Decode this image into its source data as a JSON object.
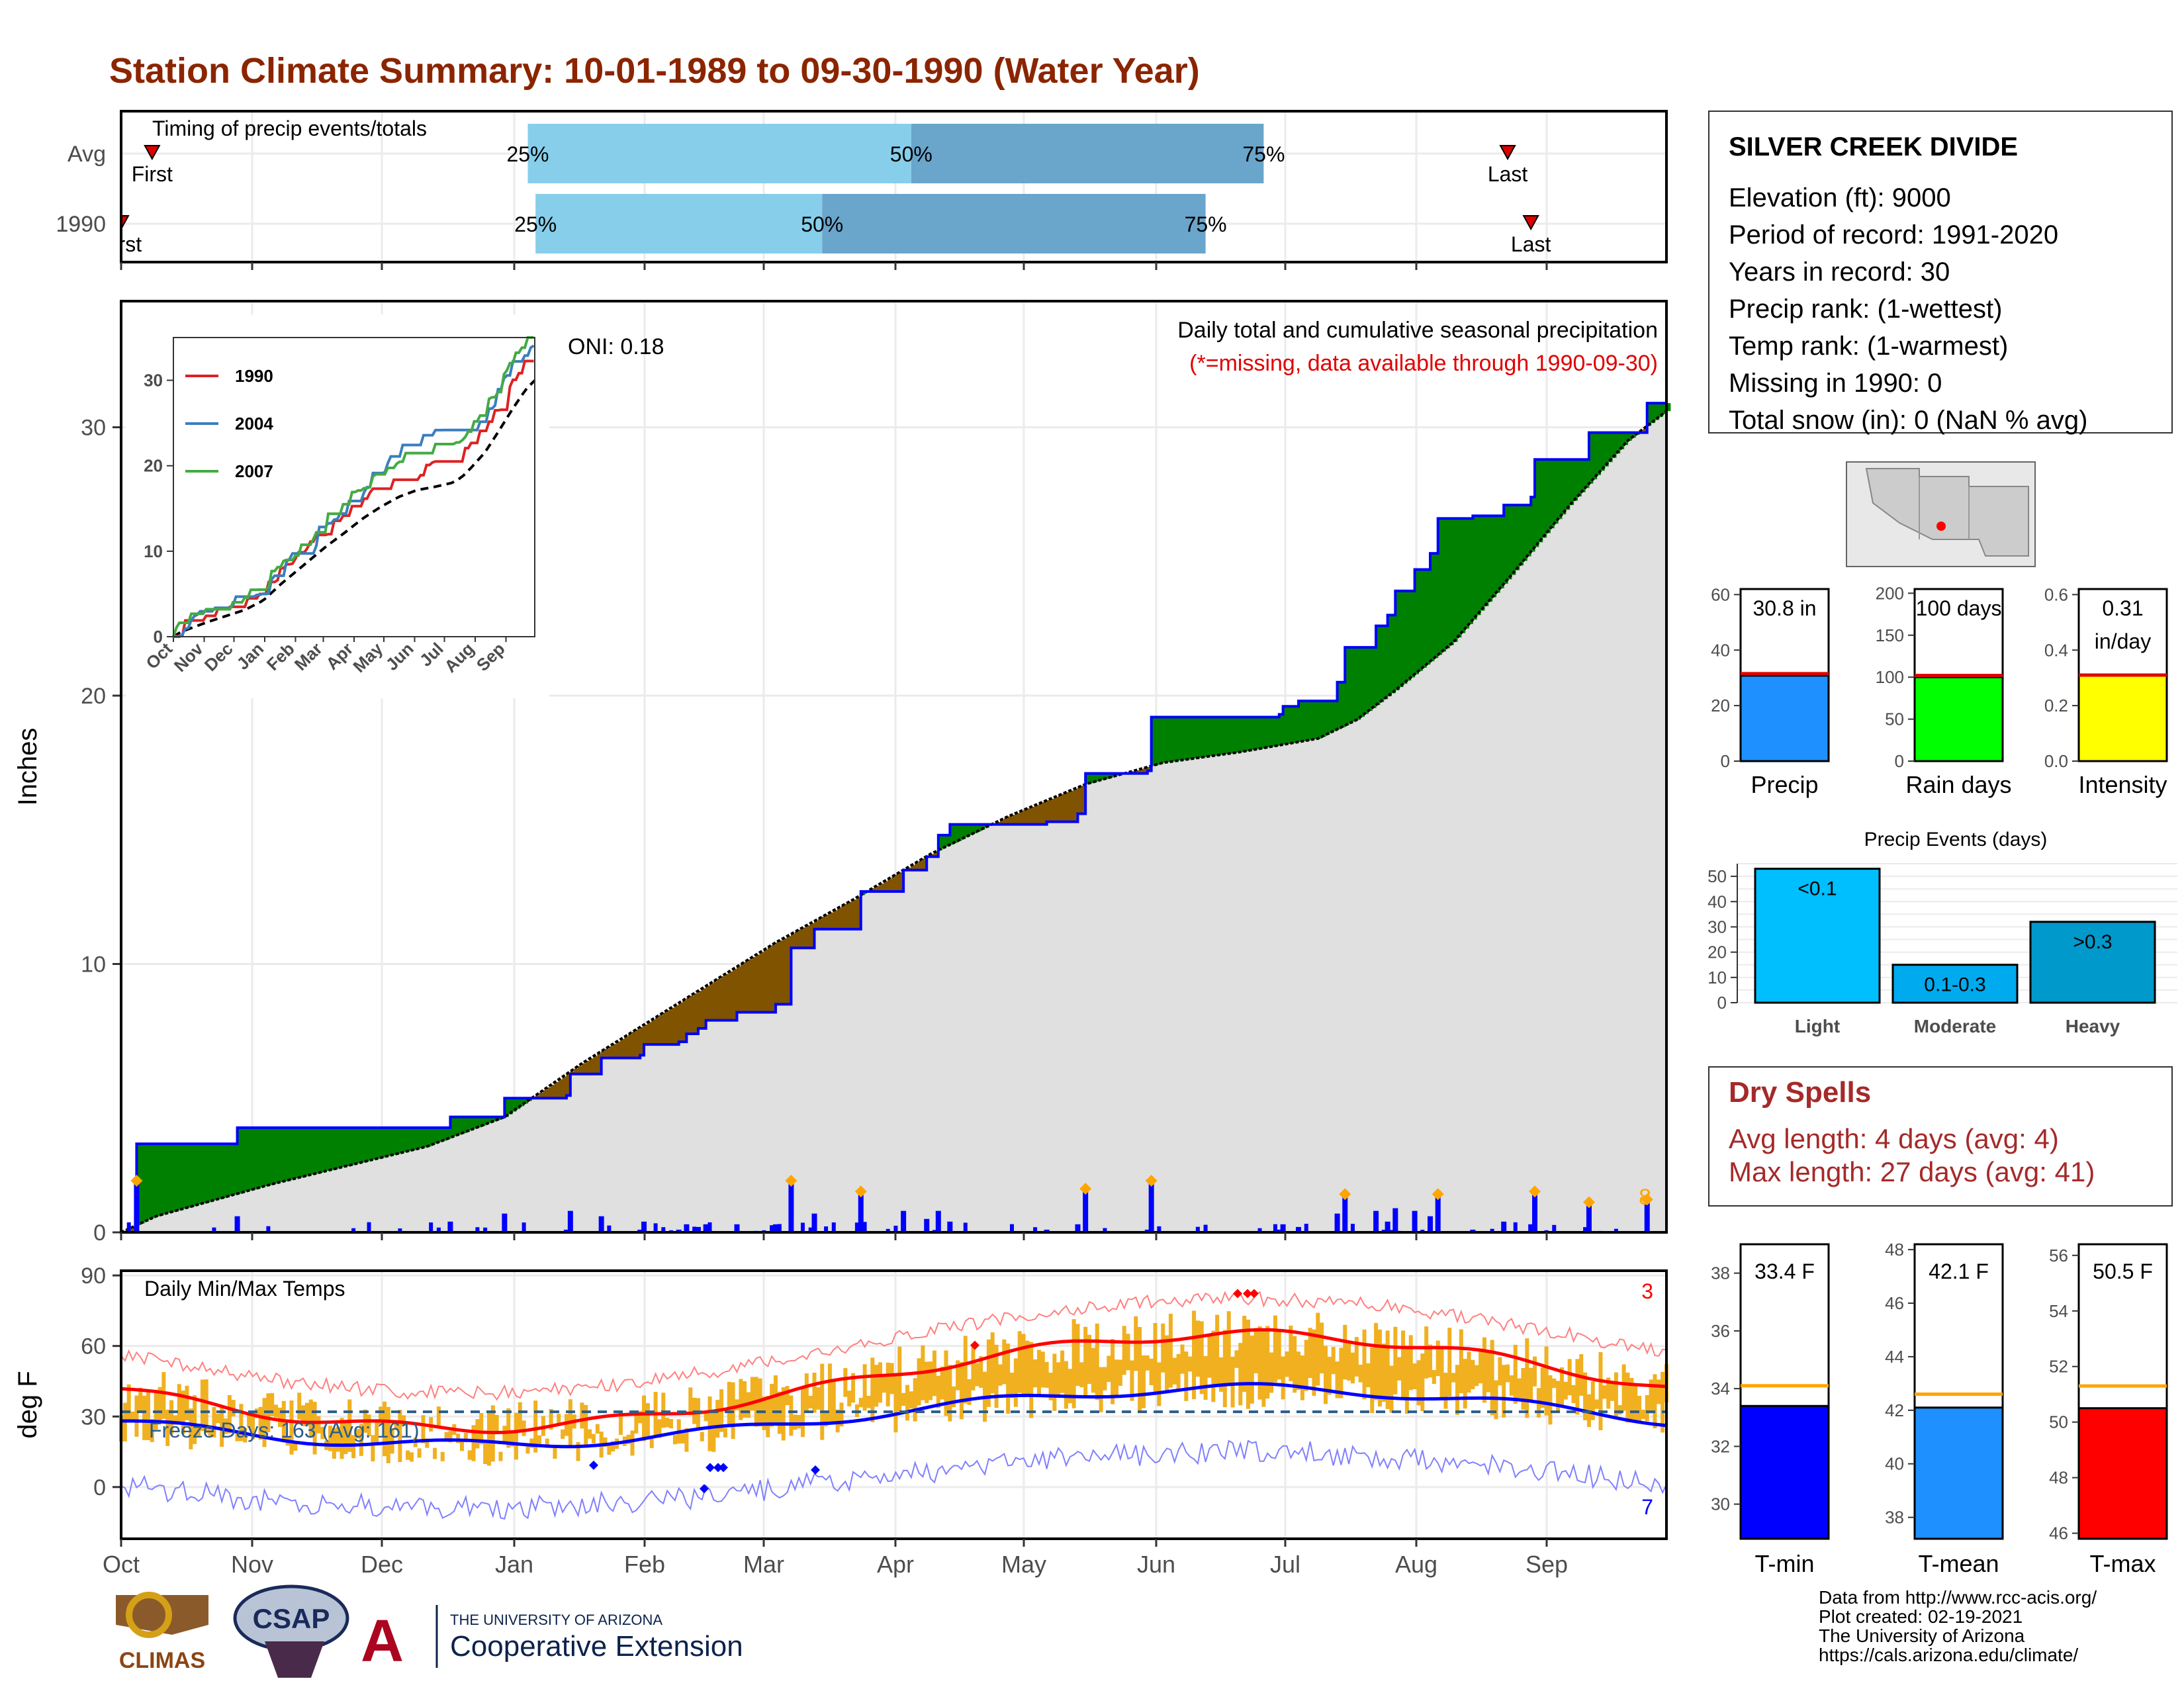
{
  "title": "Station Climate Summary: 10-01-1989 to 09-30-1990 (Water Year)",
  "months": [
    "Oct",
    "Nov",
    "Dec",
    "Jan",
    "Feb",
    "Mar",
    "Apr",
    "May",
    "Jun",
    "Jul",
    "Aug",
    "Sep"
  ],
  "timing_panel": {
    "label": "Timing of precip events/totals",
    "rows": [
      {
        "name": "Avg",
        "first_label": "First",
        "last_label": "Last",
        "first_day": 9,
        "last_day": 359,
        "p25_day": 106,
        "p50_day": 205,
        "p75_day": 296,
        "p25": "25%",
        "p50": "50%",
        "p75": "75%"
      },
      {
        "name": "1990",
        "first_label": "First",
        "last_label": "Last",
        "first_day": 1,
        "last_day": 365,
        "p25_day": 108,
        "p50_day": 182,
        "p75_day": 281,
        "p25": "25%",
        "p50": "50%",
        "p75": "75%"
      }
    ],
    "colors": {
      "early": "#87ceeb",
      "late": "#6aa5cc"
    }
  },
  "precip_panel": {
    "ylabel": "Inches",
    "yticks": [
      0,
      10,
      20,
      30
    ],
    "ylim": [
      0,
      34.7
    ],
    "annotation_right_1": "Daily total and cumulative seasonal precipitation",
    "annotation_right_2": "(*=missing, data available through 1990-09-30)",
    "oni": "ONI: 0.18",
    "count_label": "8"
  },
  "inset": {
    "yticks": [
      0,
      10,
      20,
      30
    ],
    "months": [
      "Oct",
      "Nov",
      "Dec",
      "Jan",
      "Feb",
      "Mar",
      "Apr",
      "May",
      "Jun",
      "Jul",
      "Aug",
      "Sep"
    ],
    "legend": [
      {
        "name": "1990",
        "color": "#dd2222"
      },
      {
        "name": "2004",
        "color": "#3a7ebf"
      },
      {
        "name": "2007",
        "color": "#44aa44"
      }
    ]
  },
  "temp_panel": {
    "ylabel": "deg F",
    "title": "Daily Min/Max Temps",
    "yticks": [
      0,
      30,
      60,
      90
    ],
    "ylim": [
      -22,
      92
    ],
    "freeze_label": "Freeze Days: 163 (Avg: 161)",
    "max_count": "3",
    "min_count": "7"
  },
  "info_box": {
    "station": "SILVER CREEK DIVIDE",
    "lines": [
      "Elevation (ft): 9000",
      "Period of record: 1991-2020",
      "Years in record: 30",
      "Precip rank:  (1-wettest)",
      "Temp rank:  (1-warmest)",
      "Missing in 1990: 0",
      "Total snow (in): 0 (NaN % avg)"
    ]
  },
  "summary_bars": [
    {
      "name": "Precip",
      "value": 30.8,
      "avg": 31.5,
      "label": "30.8 in",
      "color": "#1e90ff",
      "ymax": 62,
      "ticks": [
        0,
        20,
        40,
        60
      ]
    },
    {
      "name": "Rain days",
      "value": 100,
      "avg": 102,
      "label": "100 days",
      "color": "#00ff00",
      "ymax": 205,
      "ticks": [
        0,
        50,
        100,
        150,
        200
      ]
    },
    {
      "name": "Intensity",
      "value": 0.31,
      "avg": 0.31,
      "label": "0.31",
      "label2": "in/day",
      "color": "#ffff00",
      "ymax": 0.62,
      "ticks": [
        0.0,
        0.2,
        0.4,
        0.6
      ]
    }
  ],
  "events_panel": {
    "title": "Precip Events (days)",
    "yticks": [
      0,
      10,
      20,
      30,
      40,
      50
    ],
    "bars": [
      {
        "name": "Light",
        "label": "<0.1",
        "value": 53,
        "color": "#00bfff"
      },
      {
        "name": "Moderate",
        "label": "0.1-0.3",
        "value": 15,
        "color": "#00aaee"
      },
      {
        "name": "Heavy",
        "label": ">0.3",
        "value": 32,
        "color": "#0099cc"
      }
    ]
  },
  "dry_spells": {
    "title": "Dry Spells",
    "avg_line": "Avg length: 4 days (avg: 4)",
    "max_line": "Max length: 27 days (avg: 41)"
  },
  "temp_bars": [
    {
      "name": "T-min",
      "label": "33.4 F",
      "value": 33.4,
      "avg": 34.1,
      "ymin": 28.8,
      "ymax": 39.0,
      "ticks": [
        30,
        32,
        34,
        36,
        38
      ],
      "color": "#0000ff"
    },
    {
      "name": "T-mean",
      "label": "42.1 F",
      "value": 42.1,
      "avg": 42.6,
      "ymin": 37.2,
      "ymax": 48.2,
      "ticks": [
        38,
        40,
        42,
        44,
        46,
        48
      ],
      "color": "#1e90ff"
    },
    {
      "name": "T-max",
      "label": "50.5 F",
      "value": 50.5,
      "avg": 51.3,
      "ymin": 45.8,
      "ymax": 56.4,
      "ticks": [
        46,
        48,
        50,
        52,
        54,
        56
      ],
      "color": "#ff0000"
    }
  ],
  "footer": {
    "lines": [
      "Data from http://www.rcc-acis.org/",
      "Plot created: 02-19-2021",
      "The University of Arizona",
      "https://cals.arizona.edu/climate/"
    ],
    "climas": "CLIMAS",
    "csap": "CSAP",
    "ua_small": "THE UNIVERSITY OF ARIZONA",
    "ua_big": "Cooperative Extension"
  },
  "chart_data": {
    "type": "area",
    "x_unit": "day of water year (1 = Oct 1)",
    "series": [
      {
        "name": "1990",
        "cumulative_precip": [
          [
            1,
            0
          ],
          [
            5,
            3.3
          ],
          [
            30,
            3.3
          ],
          [
            31,
            3.9
          ],
          [
            80,
            3.9
          ],
          [
            86,
            4.3
          ],
          [
            100,
            5.0
          ],
          [
            116,
            5.1
          ],
          [
            117,
            5.9
          ],
          [
            125,
            6.5
          ],
          [
            135,
            6.6
          ],
          [
            136,
            7.0
          ],
          [
            145,
            7.1
          ],
          [
            147,
            7.4
          ],
          [
            150,
            7.6
          ],
          [
            152,
            7.9
          ],
          [
            160,
            8.2
          ],
          [
            170,
            8.5
          ],
          [
            174,
            10.6
          ],
          [
            180,
            11.3
          ],
          [
            192,
            12.7
          ],
          [
            203,
            13.5
          ],
          [
            209,
            14.0
          ],
          [
            212,
            14.8
          ],
          [
            215,
            15.2
          ],
          [
            231,
            15.2
          ],
          [
            240,
            15.3
          ],
          [
            248,
            15.6
          ],
          [
            250,
            17.1
          ],
          [
            266,
            17.2
          ],
          [
            267,
            19.2
          ],
          [
            300,
            19.3
          ],
          [
            301,
            19.6
          ],
          [
            305,
            19.8
          ],
          [
            315,
            20.5
          ],
          [
            317,
            21.8
          ],
          [
            325,
            22.6
          ],
          [
            328,
            23.0
          ],
          [
            330,
            23.9
          ],
          [
            335,
            24.7
          ],
          [
            339,
            25.3
          ],
          [
            341,
            26.6
          ],
          [
            350,
            26.7
          ],
          [
            358,
            27.1
          ],
          [
            365,
            27.4
          ],
          [
            366,
            28.8
          ],
          [
            380,
            29.8
          ],
          [
            395,
            30.9
          ]
        ]
      },
      {
        "name": "Avg",
        "cumulative_precip": [
          [
            1,
            0
          ],
          [
            10,
            0.6
          ],
          [
            40,
            1.8
          ],
          [
            60,
            2.5
          ],
          [
            80,
            3.2
          ],
          [
            100,
            4.3
          ],
          [
            120,
            6.3
          ],
          [
            150,
            9.0
          ],
          [
            170,
            10.8
          ],
          [
            190,
            12.4
          ],
          [
            210,
            14.1
          ],
          [
            230,
            15.5
          ],
          [
            250,
            16.7
          ],
          [
            270,
            17.5
          ],
          [
            290,
            17.9
          ],
          [
            310,
            18.4
          ],
          [
            320,
            19.1
          ],
          [
            330,
            20.2
          ],
          [
            345,
            22.0
          ],
          [
            360,
            24.5
          ],
          [
            375,
            27.1
          ],
          [
            390,
            29.5
          ],
          [
            400,
            30.6
          ]
        ]
      }
    ],
    "ylim": [
      0,
      34.7
    ]
  }
}
